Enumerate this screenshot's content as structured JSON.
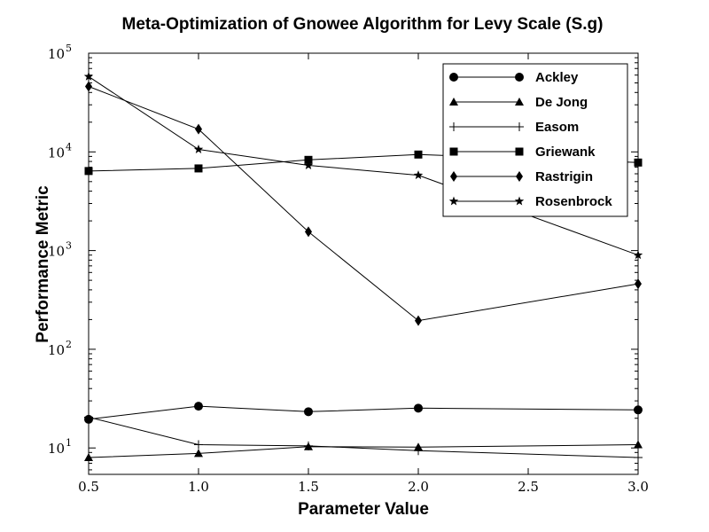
{
  "chart_data": {
    "type": "line",
    "title": "Meta-Optimization of Gnowee Algorithm for Levy Scale (S.g)",
    "xlabel": "Parameter Value",
    "ylabel": "Performance Metric",
    "y_scale": "log",
    "xlim": [
      0.5,
      3.0
    ],
    "ylim": [
      5.4,
      100000
    ],
    "x_ticks": [
      {
        "value": 0.5,
        "label": "0.5"
      },
      {
        "value": 1.0,
        "label": "1.0"
      },
      {
        "value": 1.5,
        "label": "1.5"
      },
      {
        "value": 2.0,
        "label": "2.0"
      },
      {
        "value": 2.5,
        "label": "2.5"
      },
      {
        "value": 3.0,
        "label": "3.0"
      }
    ],
    "y_ticks": [
      {
        "value": 10,
        "base": "10",
        "exp": "1"
      },
      {
        "value": 100,
        "base": "10",
        "exp": "2"
      },
      {
        "value": 1000,
        "base": "10",
        "exp": "3"
      },
      {
        "value": 10000,
        "base": "10",
        "exp": "4"
      },
      {
        "value": 100000,
        "base": "10",
        "exp": "5"
      }
    ],
    "grid": false,
    "legend_position": "top-right",
    "x": [
      0.5,
      1.0,
      1.5,
      2.0,
      2.5,
      3.0
    ],
    "series": [
      {
        "name": "Ackley",
        "marker": "circle",
        "x": [
          0.5,
          1.0,
          1.5,
          2.0,
          3.0
        ],
        "values": [
          19.5,
          26.5,
          23.3,
          25.3,
          24.3
        ]
      },
      {
        "name": "De Jong",
        "marker": "triangle",
        "x": [
          0.5,
          1.0,
          1.5,
          2.0,
          3.0
        ],
        "values": [
          8.0,
          8.8,
          10.3,
          10.2,
          10.8
        ]
      },
      {
        "name": "Easom",
        "marker": "plus",
        "x": [
          0.5,
          1.0,
          1.5,
          2.0,
          3.0
        ],
        "values": [
          20.5,
          10.8,
          10.5,
          9.4,
          8.0
        ]
      },
      {
        "name": "Griewank",
        "marker": "square",
        "x": [
          0.5,
          1.0,
          1.5,
          2.0,
          3.0
        ],
        "values": [
          6400,
          6800,
          8300,
          9400,
          7800
        ]
      },
      {
        "name": "Rastrigin",
        "marker": "diamond",
        "x": [
          0.5,
          1.0,
          1.5,
          2.0,
          3.0
        ],
        "values": [
          46000,
          17000,
          1550,
          195,
          460
        ]
      },
      {
        "name": "Rosenbrock",
        "marker": "star",
        "x": [
          0.5,
          1.0,
          1.5,
          2.0,
          3.0
        ],
        "values": [
          58000,
          10600,
          7300,
          5800,
          900
        ]
      }
    ]
  }
}
